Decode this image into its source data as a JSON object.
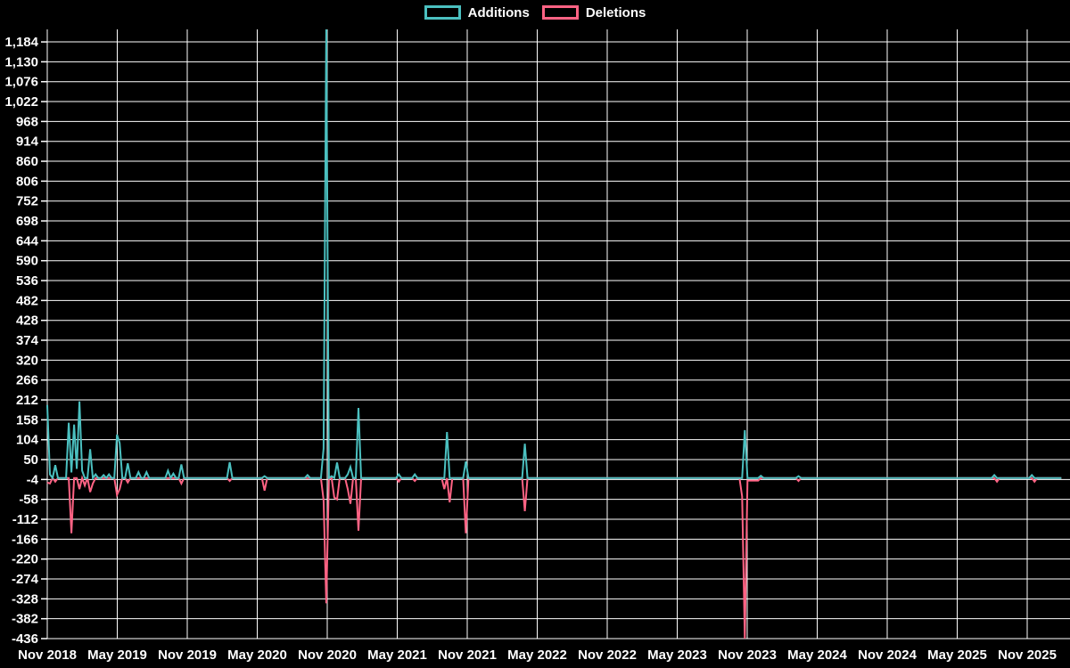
{
  "page": {
    "background_color": "#000000"
  },
  "chart_data": {
    "type": "line",
    "title": "",
    "legend": [
      "Additions",
      "Deletions"
    ],
    "legend_position": "top-center",
    "background_color": "#000000",
    "grid": true,
    "grid_color": "#ffffff",
    "text_color": "#ffffff",
    "x_unit": "week",
    "weeks_total": 379,
    "weeks_per_tick": 26.09,
    "x_tick_labels": [
      "Nov 2018",
      "May 2019",
      "Nov 2019",
      "May 2020",
      "Nov 2020",
      "May 2021",
      "Nov 2021",
      "May 2022",
      "Nov 2022",
      "May 2023",
      "Nov 2023",
      "May 2024",
      "Nov 2024",
      "May 2025",
      "Nov 2025"
    ],
    "ylim": [
      -436,
      1218
    ],
    "y_ticks": [
      1184,
      1130,
      1076,
      1022,
      968,
      914,
      860,
      806,
      752,
      698,
      644,
      590,
      536,
      482,
      428,
      374,
      320,
      266,
      212,
      158,
      104,
      50,
      -4,
      -58,
      -112,
      -166,
      -220,
      -274,
      -328,
      -382,
      -436
    ],
    "y_tick_labels": [
      "1,184",
      "1,130",
      "1,076",
      "1,022",
      "968",
      "914",
      "860",
      "806",
      "752",
      "698",
      "644",
      "590",
      "536",
      "482",
      "428",
      "374",
      "320",
      "266",
      "212",
      "158",
      "104",
      "50",
      "-4",
      "-58",
      "-112",
      "-166",
      "-220",
      "-274",
      "-328",
      "-382",
      "-436"
    ],
    "series": [
      {
        "name": "Additions",
        "color": "#4bc0c0",
        "line_width": 2,
        "default_value": 0,
        "points": [
          [
            0,
            198
          ],
          [
            1,
            10
          ],
          [
            3,
            35
          ],
          [
            8,
            150
          ],
          [
            9,
            15
          ],
          [
            10,
            145
          ],
          [
            11,
            25
          ],
          [
            12,
            208
          ],
          [
            13,
            20
          ],
          [
            16,
            78
          ],
          [
            18,
            10
          ],
          [
            21,
            8
          ],
          [
            23,
            10
          ],
          [
            26,
            118
          ],
          [
            27,
            95
          ],
          [
            30,
            40
          ],
          [
            34,
            16
          ],
          [
            37,
            16
          ],
          [
            45,
            20
          ],
          [
            47,
            12
          ],
          [
            50,
            37
          ],
          [
            68,
            43
          ],
          [
            81,
            5
          ],
          [
            97,
            8
          ],
          [
            103,
            80
          ],
          [
            104,
            1218
          ],
          [
            106,
            5
          ],
          [
            108,
            42
          ],
          [
            112,
            10
          ],
          [
            113,
            30
          ],
          [
            116,
            190
          ],
          [
            131,
            10
          ],
          [
            137,
            10
          ],
          [
            149,
            125
          ],
          [
            156,
            45
          ],
          [
            178,
            93
          ],
          [
            260,
            130
          ],
          [
            266,
            6
          ],
          [
            280,
            5
          ],
          [
            353,
            8
          ],
          [
            367,
            8
          ]
        ]
      },
      {
        "name": "Deletions",
        "color": "#ff6384",
        "line_width": 2,
        "default_value": 0,
        "points": [
          [
            0,
            -12
          ],
          [
            1,
            -15
          ],
          [
            3,
            -10
          ],
          [
            9,
            -150
          ],
          [
            12,
            -30
          ],
          [
            14,
            -20
          ],
          [
            16,
            -38
          ],
          [
            17,
            -15
          ],
          [
            26,
            -46
          ],
          [
            27,
            -30
          ],
          [
            30,
            -12
          ],
          [
            50,
            -15
          ],
          [
            68,
            -8
          ],
          [
            81,
            -34
          ],
          [
            103,
            -60
          ],
          [
            104,
            -340
          ],
          [
            107,
            -53
          ],
          [
            108,
            -58
          ],
          [
            112,
            -30
          ],
          [
            113,
            -70
          ],
          [
            116,
            -143
          ],
          [
            131,
            -10
          ],
          [
            137,
            -8
          ],
          [
            148,
            -30
          ],
          [
            150,
            -66
          ],
          [
            156,
            -150
          ],
          [
            178,
            -90
          ],
          [
            259,
            -50
          ],
          [
            260,
            -436
          ],
          [
            261,
            -7
          ],
          [
            262,
            -7
          ],
          [
            263,
            -7
          ],
          [
            264,
            -7
          ],
          [
            265,
            -7
          ],
          [
            280,
            -8
          ],
          [
            354,
            -10
          ],
          [
            368,
            -10
          ]
        ]
      }
    ]
  }
}
